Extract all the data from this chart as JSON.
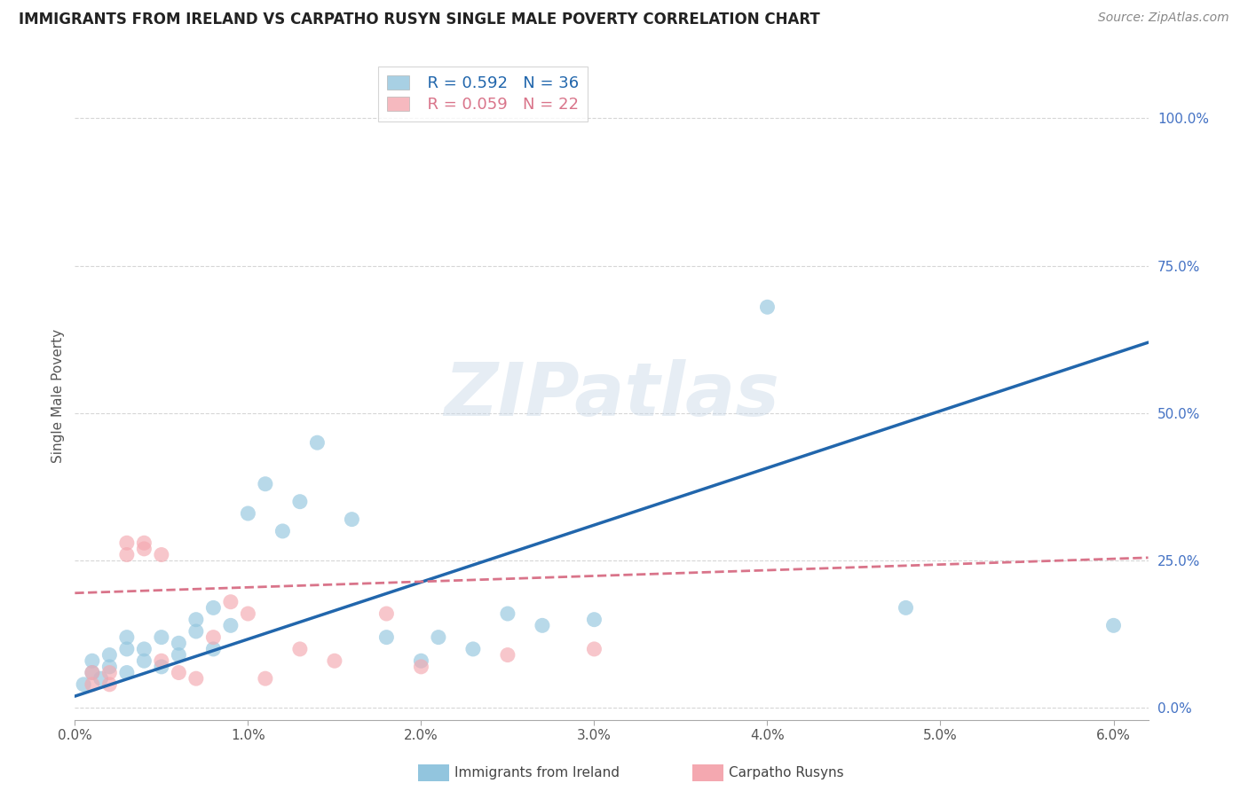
{
  "title": "IMMIGRANTS FROM IRELAND VS CARPATHO RUSYN SINGLE MALE POVERTY CORRELATION CHART",
  "source": "Source: ZipAtlas.com",
  "ylabel": "Single Male Poverty",
  "xlim": [
    0.0,
    0.062
  ],
  "ylim": [
    -0.02,
    1.08
  ],
  "xtick_labels": [
    "0.0%",
    "1.0%",
    "2.0%",
    "3.0%",
    "4.0%",
    "5.0%",
    "6.0%"
  ],
  "xtick_vals": [
    0.0,
    0.01,
    0.02,
    0.03,
    0.04,
    0.05,
    0.06
  ],
  "ytick_vals_right": [
    0.0,
    0.25,
    0.5,
    0.75,
    1.0
  ],
  "ytick_labels_right": [
    "0.0%",
    "25.0%",
    "50.0%",
    "75.0%",
    "100.0%"
  ],
  "watermark": "ZIPatlas",
  "legend_ireland_r": "R = 0.592",
  "legend_ireland_n": "N = 36",
  "legend_rusyn_r": "R = 0.059",
  "legend_rusyn_n": "N = 22",
  "ireland_color": "#92c5de",
  "rusyn_color": "#f4a8b0",
  "ireland_line_color": "#2166ac",
  "rusyn_line_color": "#d9748a",
  "blue_line_x": [
    0.0,
    0.062
  ],
  "blue_line_y": [
    0.02,
    0.62
  ],
  "pink_line_x": [
    0.0,
    0.062
  ],
  "pink_line_y": [
    0.195,
    0.255
  ],
  "blue_dots": [
    [
      0.0005,
      0.04
    ],
    [
      0.001,
      0.06
    ],
    [
      0.001,
      0.08
    ],
    [
      0.0015,
      0.05
    ],
    [
      0.002,
      0.07
    ],
    [
      0.002,
      0.09
    ],
    [
      0.003,
      0.06
    ],
    [
      0.003,
      0.1
    ],
    [
      0.003,
      0.12
    ],
    [
      0.004,
      0.08
    ],
    [
      0.004,
      0.1
    ],
    [
      0.005,
      0.07
    ],
    [
      0.005,
      0.12
    ],
    [
      0.006,
      0.09
    ],
    [
      0.006,
      0.11
    ],
    [
      0.007,
      0.13
    ],
    [
      0.007,
      0.15
    ],
    [
      0.008,
      0.1
    ],
    [
      0.008,
      0.17
    ],
    [
      0.009,
      0.14
    ],
    [
      0.01,
      0.33
    ],
    [
      0.011,
      0.38
    ],
    [
      0.012,
      0.3
    ],
    [
      0.013,
      0.35
    ],
    [
      0.014,
      0.45
    ],
    [
      0.016,
      0.32
    ],
    [
      0.018,
      0.12
    ],
    [
      0.02,
      0.08
    ],
    [
      0.021,
      0.12
    ],
    [
      0.023,
      0.1
    ],
    [
      0.025,
      0.16
    ],
    [
      0.027,
      0.14
    ],
    [
      0.03,
      0.15
    ],
    [
      0.04,
      0.68
    ],
    [
      0.048,
      0.17
    ],
    [
      0.06,
      0.14
    ]
  ],
  "pink_dots": [
    [
      0.001,
      0.04
    ],
    [
      0.001,
      0.06
    ],
    [
      0.002,
      0.04
    ],
    [
      0.002,
      0.06
    ],
    [
      0.003,
      0.26
    ],
    [
      0.003,
      0.28
    ],
    [
      0.004,
      0.27
    ],
    [
      0.004,
      0.28
    ],
    [
      0.005,
      0.26
    ],
    [
      0.005,
      0.08
    ],
    [
      0.006,
      0.06
    ],
    [
      0.007,
      0.05
    ],
    [
      0.008,
      0.12
    ],
    [
      0.009,
      0.18
    ],
    [
      0.01,
      0.16
    ],
    [
      0.011,
      0.05
    ],
    [
      0.013,
      0.1
    ],
    [
      0.015,
      0.08
    ],
    [
      0.018,
      0.16
    ],
    [
      0.02,
      0.07
    ],
    [
      0.025,
      0.09
    ],
    [
      0.03,
      0.1
    ]
  ],
  "background_color": "#ffffff",
  "grid_color": "#cccccc"
}
